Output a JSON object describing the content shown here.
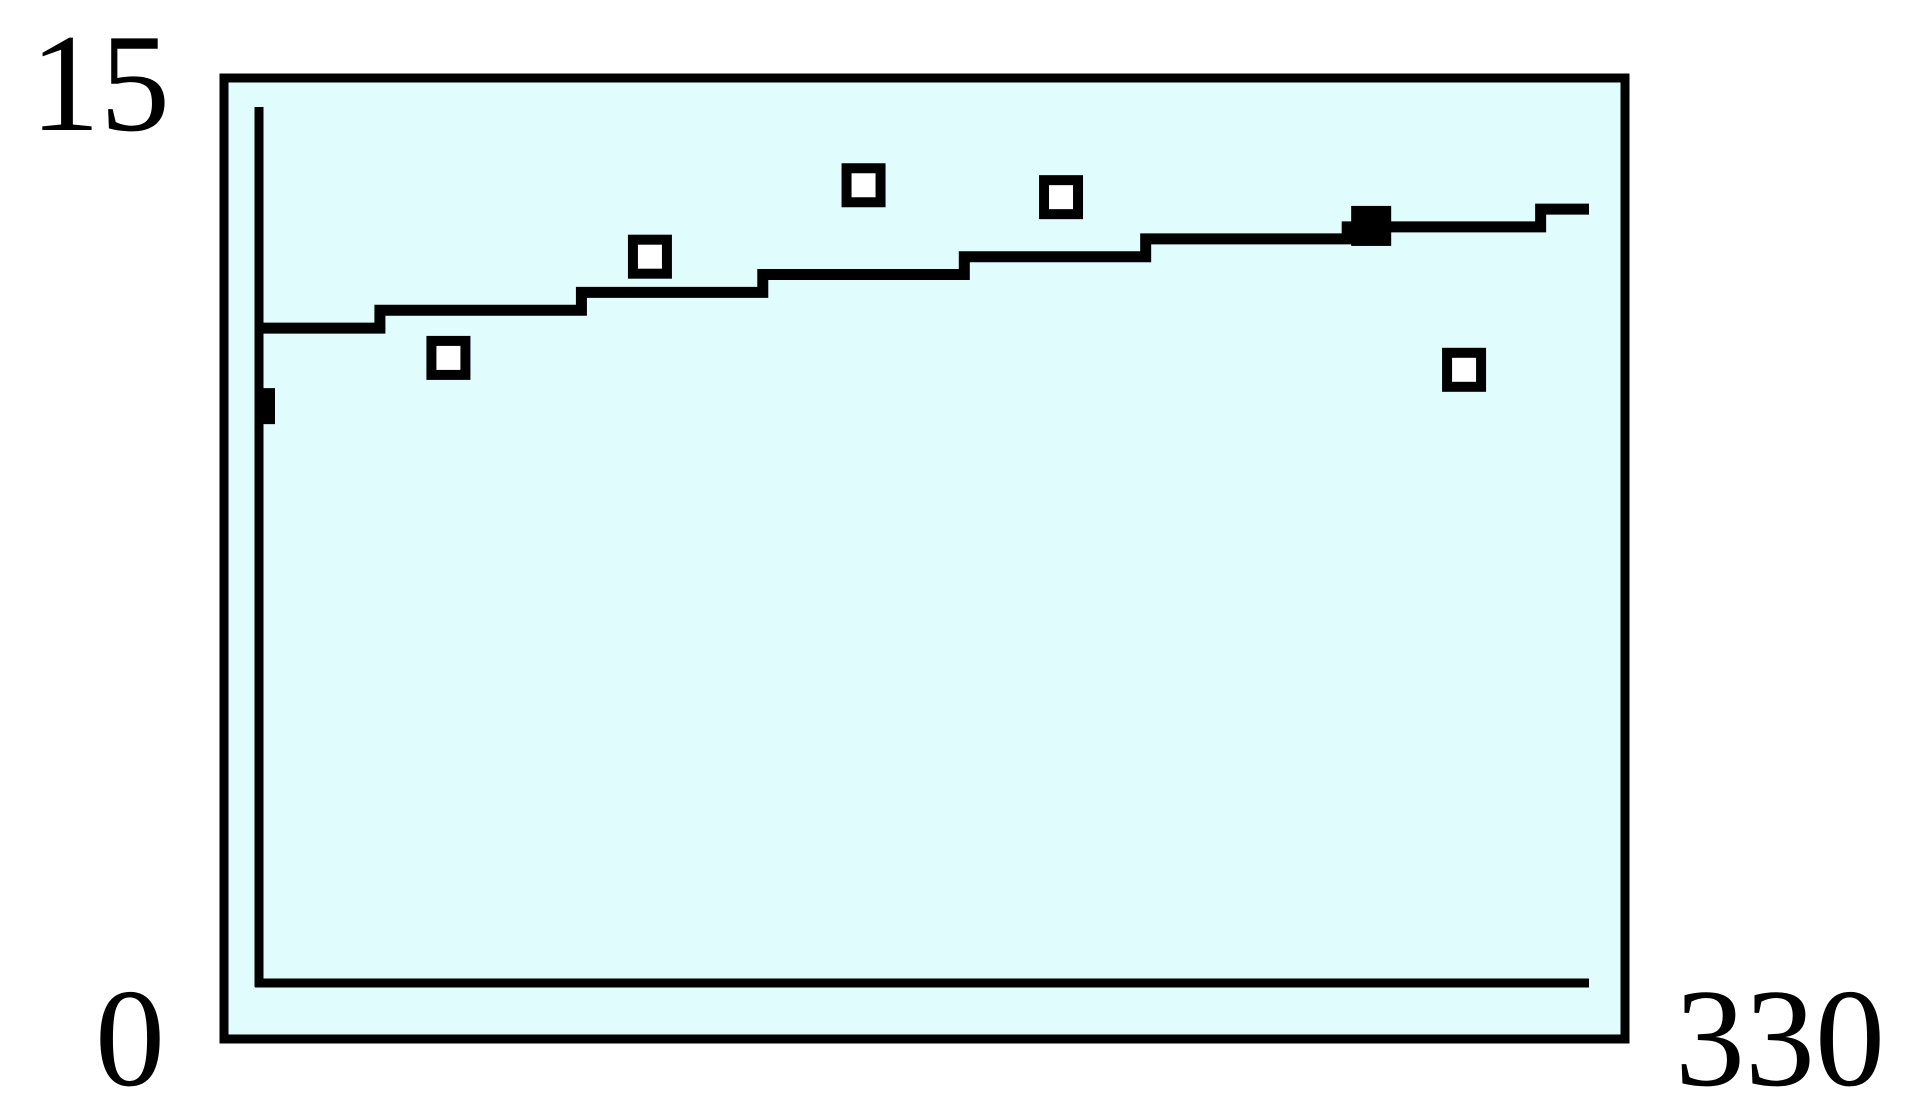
{
  "chart_data": {
    "type": "scatter",
    "title": "",
    "xlabel": "",
    "ylabel": "",
    "xlim": [
      0,
      330
    ],
    "ylim": [
      0,
      15
    ],
    "grid": false,
    "x_tick_labels": [
      "0",
      "330"
    ],
    "y_tick_labels": [
      "0",
      "15"
    ],
    "background_color": "#e0fcfc",
    "line_color": "#000000",
    "series": [
      {
        "type": "step",
        "x": [
          0,
          30,
          80,
          125,
          175,
          220,
          270,
          318,
          330
        ],
        "y": [
          11.0,
          11.3,
          11.6,
          11.9,
          12.2,
          12.5,
          12.7,
          13.0,
          13.0
        ]
      },
      {
        "type": "scatter",
        "marker": "square",
        "x": [
          47,
          97,
          150,
          199,
          299
        ],
        "y": [
          10.5,
          12.2,
          13.4,
          13.2,
          10.3
        ]
      }
    ]
  }
}
